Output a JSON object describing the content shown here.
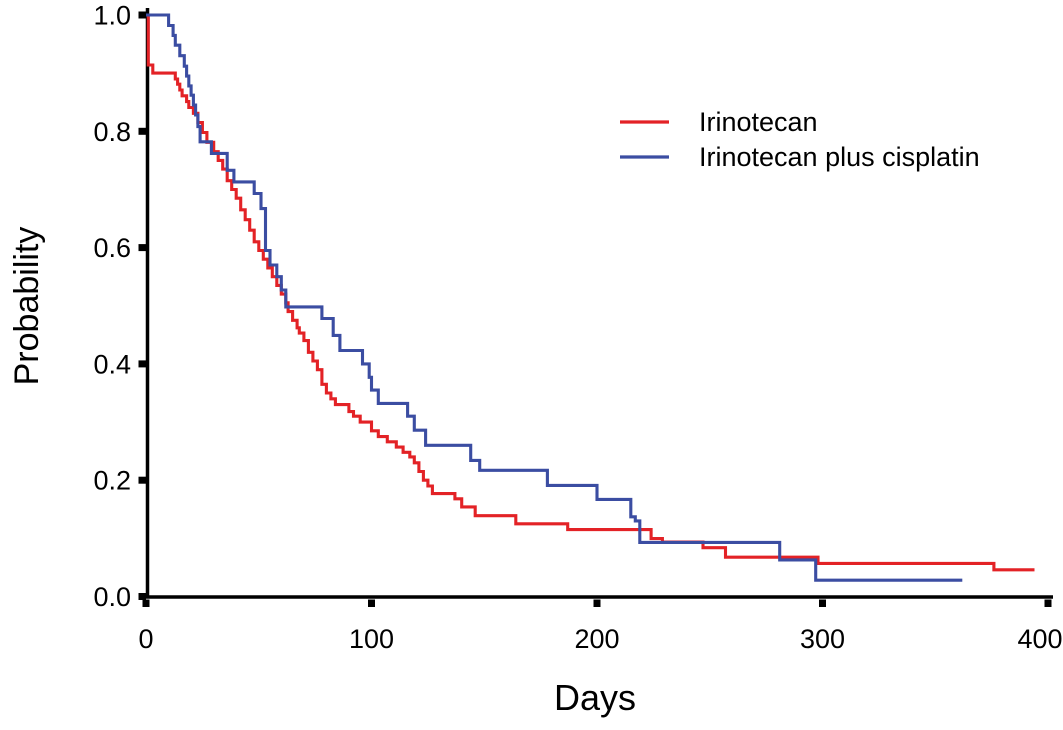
{
  "chart_data": {
    "type": "line",
    "variant": "kaplan-meier-step",
    "title": "",
    "xlabel": "Days",
    "ylabel": "Probability",
    "grid": false,
    "background_color": "#ffffff",
    "axis_color": "#000000",
    "legend_position": "upper-right-inside",
    "x_axis": {
      "min": 0,
      "max": 400,
      "ticks": [
        {
          "label": "0",
          "value": 0
        },
        {
          "label": "100",
          "value": 100
        },
        {
          "label": "200",
          "value": 200
        },
        {
          "label": "300",
          "value": 300
        },
        {
          "label": "400",
          "value": 400
        }
      ]
    },
    "y_axis": {
      "min": 0,
      "max": 1,
      "ticks": [
        {
          "label": "0.0",
          "value": 0.0
        },
        {
          "label": "0.2",
          "value": 0.2
        },
        {
          "label": "0.4",
          "value": 0.4
        },
        {
          "label": "0.6",
          "value": 0.6
        },
        {
          "label": "0.8",
          "value": 0.8
        },
        {
          "label": "1.0",
          "value": 1.0
        }
      ]
    },
    "series": [
      {
        "name": "Irinotecan",
        "color": "#e32226",
        "unit_x": "days",
        "unit_y": "probability",
        "end_day": 394,
        "points": [
          [
            0,
            1.0
          ],
          [
            1,
            0.914
          ],
          [
            3,
            0.9
          ],
          [
            13,
            0.89
          ],
          [
            14,
            0.881
          ],
          [
            15,
            0.871
          ],
          [
            16,
            0.861
          ],
          [
            18,
            0.851
          ],
          [
            19,
            0.841
          ],
          [
            21,
            0.831
          ],
          [
            23,
            0.815
          ],
          [
            25,
            0.798
          ],
          [
            27,
            0.781
          ],
          [
            30,
            0.765
          ],
          [
            32,
            0.75
          ],
          [
            34,
            0.735
          ],
          [
            36,
            0.715
          ],
          [
            38,
            0.7
          ],
          [
            40,
            0.685
          ],
          [
            42,
            0.665
          ],
          [
            44,
            0.648
          ],
          [
            46,
            0.63
          ],
          [
            48,
            0.61
          ],
          [
            50,
            0.595
          ],
          [
            52,
            0.58
          ],
          [
            54,
            0.565
          ],
          [
            56,
            0.55
          ],
          [
            58,
            0.535
          ],
          [
            60,
            0.52
          ],
          [
            62,
            0.505
          ],
          [
            63,
            0.49
          ],
          [
            65,
            0.475
          ],
          [
            67,
            0.462
          ],
          [
            68,
            0.453
          ],
          [
            70,
            0.44
          ],
          [
            72,
            0.42
          ],
          [
            74,
            0.405
          ],
          [
            76,
            0.39
          ],
          [
            78,
            0.365
          ],
          [
            80,
            0.35
          ],
          [
            82,
            0.34
          ],
          [
            84,
            0.33
          ],
          [
            90,
            0.318
          ],
          [
            92,
            0.31
          ],
          [
            95,
            0.3
          ],
          [
            100,
            0.285
          ],
          [
            103,
            0.275
          ],
          [
            107,
            0.266
          ],
          [
            111,
            0.257
          ],
          [
            114,
            0.248
          ],
          [
            117,
            0.24
          ],
          [
            119,
            0.23
          ],
          [
            121,
            0.215
          ],
          [
            123,
            0.2
          ],
          [
            125,
            0.19
          ],
          [
            127,
            0.177
          ],
          [
            137,
            0.168
          ],
          [
            140,
            0.154
          ],
          [
            146,
            0.139
          ],
          [
            164,
            0.125
          ],
          [
            187,
            0.115
          ],
          [
            224,
            0.0995
          ],
          [
            229,
            0.0935
          ],
          [
            247,
            0.084
          ],
          [
            257,
            0.0675
          ],
          [
            298,
            0.057
          ],
          [
            376,
            0.046
          ]
        ]
      },
      {
        "name": "Irinotecan plus cisplatin",
        "color": "#3b4da2",
        "unit_x": "days",
        "unit_y": "probability",
        "end_day": 362,
        "points": [
          [
            0,
            1.0
          ],
          [
            10,
            0.982
          ],
          [
            12,
            0.965
          ],
          [
            13,
            0.948
          ],
          [
            15,
            0.93
          ],
          [
            17,
            0.912
          ],
          [
            18,
            0.895
          ],
          [
            19,
            0.878
          ],
          [
            20,
            0.862
          ],
          [
            21,
            0.845
          ],
          [
            22,
            0.828
          ],
          [
            23,
            0.808
          ],
          [
            24,
            0.782
          ],
          [
            29,
            0.762
          ],
          [
            36,
            0.733
          ],
          [
            39,
            0.713
          ],
          [
            48,
            0.693
          ],
          [
            51,
            0.667
          ],
          [
            53,
            0.595
          ],
          [
            55,
            0.57
          ],
          [
            58,
            0.55
          ],
          [
            60,
            0.527
          ],
          [
            62,
            0.498
          ],
          [
            78,
            0.478
          ],
          [
            83,
            0.449
          ],
          [
            86,
            0.423
          ],
          [
            96,
            0.4
          ],
          [
            99,
            0.377
          ],
          [
            100,
            0.355
          ],
          [
            103,
            0.332
          ],
          [
            116,
            0.31
          ],
          [
            119,
            0.286
          ],
          [
            124,
            0.26
          ],
          [
            144,
            0.234
          ],
          [
            148,
            0.217
          ],
          [
            178,
            0.191
          ],
          [
            200,
            0.167
          ],
          [
            215,
            0.137
          ],
          [
            217,
            0.13
          ],
          [
            219,
            0.093
          ],
          [
            281,
            0.063
          ],
          [
            297,
            0.028
          ]
        ]
      }
    ]
  }
}
